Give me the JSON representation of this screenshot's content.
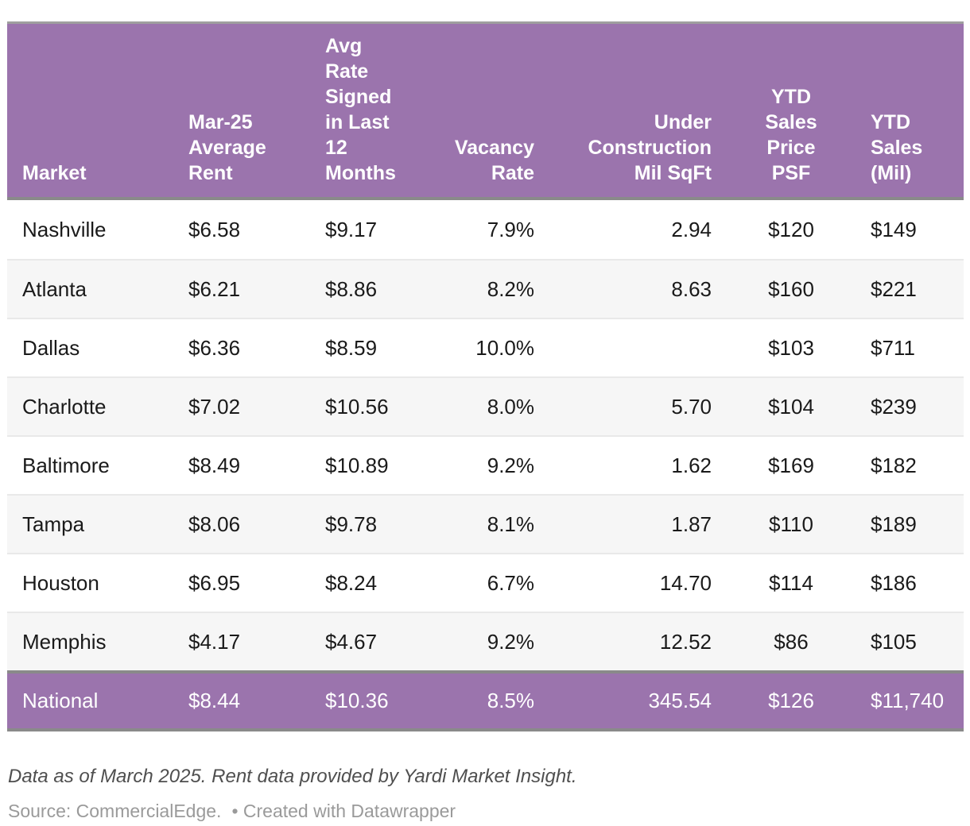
{
  "chart_data": {
    "type": "table",
    "columns": [
      "Market",
      "Mar-25 Average Rent",
      "Avg Rate Signed in Last 12 Months",
      "Vacancy Rate",
      "Under Construction Mil SqFt",
      "YTD Sales Price PSF",
      "YTD Sales (Mil)"
    ],
    "rows": [
      [
        "Nashville",
        "$6.58",
        "$9.17",
        "7.9%",
        "2.94",
        "$120",
        "$149"
      ],
      [
        "Atlanta",
        "$6.21",
        "$8.86",
        "8.2%",
        "8.63",
        "$160",
        "$221"
      ],
      [
        "Dallas",
        "$6.36",
        "$8.59",
        "10.0%",
        "",
        "$103",
        "$711"
      ],
      [
        "Charlotte",
        "$7.02",
        "$10.56",
        "8.0%",
        "5.70",
        "$104",
        "$239"
      ],
      [
        "Baltimore",
        "$8.49",
        "$10.89",
        "9.2%",
        "1.62",
        "$169",
        "$182"
      ],
      [
        "Tampa",
        "$8.06",
        "$9.78",
        "8.1%",
        "1.87",
        "$110",
        "$189"
      ],
      [
        "Houston",
        "$6.95",
        "$8.24",
        "6.7%",
        "14.70",
        "$114",
        "$186"
      ],
      [
        "Memphis",
        "$4.17",
        "$4.67",
        "9.2%",
        "12.52",
        "$86",
        "$105"
      ],
      [
        "National",
        "$8.44",
        "$10.36",
        "8.5%",
        "345.54",
        "$126",
        "$11,740"
      ]
    ],
    "notes": "Data as of March 2025. Rent data provided by Yardi Market Insight.",
    "source": "Source: CommercialEdge.",
    "attribution": "Created with Datawrapper",
    "layout_hints": {
      "column_aligns": [
        "left",
        "left",
        "left",
        "right",
        "right",
        "center",
        "left"
      ],
      "highlight_row": "National",
      "striped": true
    }
  },
  "table": {
    "header_lines": [
      "Market",
      "Mar-25\nAverage\nRent",
      "Avg\nRate\nSigned\nin Last\n12\nMonths",
      "Vacancy\nRate",
      "Under\nConstruction\nMil SqFt",
      "YTD\nSales\nPrice\nPSF",
      "YTD\nSales\n(Mil)"
    ],
    "aligns": [
      "left",
      "left",
      "left",
      "right",
      "right",
      "center",
      "left"
    ],
    "highlight_row": 8
  },
  "footer": {
    "note": "Data as of March 2025. Rent data provided by Yardi Market Insight.",
    "source": "Source: CommercialEdge.",
    "attribution": "• Created with Datawrapper"
  },
  "colors": {
    "accent": "#9b74ad",
    "header_text": "#ffffff",
    "body_text": "#1a1a1a",
    "stripe": "#f6f6f6",
    "divider": "#e9e9e9",
    "border_top": "#9f9f9f",
    "border_dark": "#8a8a8a",
    "note_text": "#4f4f4f",
    "source_text": "#9a9a9a"
  }
}
